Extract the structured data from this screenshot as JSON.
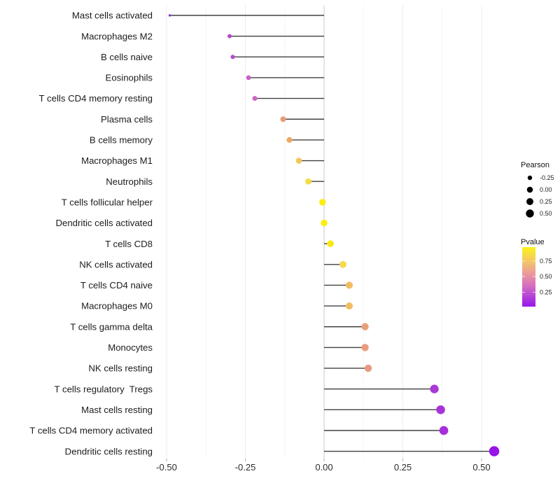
{
  "chart_data": {
    "type": "lollipop",
    "orientation": "horizontal",
    "title": "",
    "xlabel": "",
    "ylabel": "",
    "categories": [
      "Mast cells activated",
      "Macrophages M2",
      "B cells naive",
      "Eosinophils",
      "T cells CD4 memory resting",
      "Plasma cells",
      "B cells memory",
      "Macrophages M1",
      "Neutrophils",
      "T cells follicular helper",
      "Dendritic cells activated",
      "T cells CD8",
      "NK cells activated",
      "T cells CD4 naive",
      "Macrophages M0",
      "T cells gamma delta",
      "Monocytes",
      "NK cells resting",
      "T cells regulatory  Tregs",
      "Mast cells resting",
      "T cells CD4 memory activated",
      "Dendritic cells resting"
    ],
    "series": [
      {
        "name": "Pearson correlation",
        "values": [
          -0.49,
          -0.3,
          -0.29,
          -0.24,
          -0.22,
          -0.13,
          -0.11,
          -0.08,
          -0.05,
          -0.005,
          0.0,
          0.02,
          0.06,
          0.08,
          0.08,
          0.13,
          0.13,
          0.14,
          0.35,
          0.37,
          0.38,
          0.54
        ]
      }
    ],
    "point_colors": [
      "#8f28e3",
      "#b648cd",
      "#b648cd",
      "#ca5fc7",
      "#cc63c6",
      "#e99a76",
      "#ecaa66",
      "#f2c75d",
      "#f5dc47",
      "#fbee0e",
      "#fbee0e",
      "#fae90f",
      "#f6d94c",
      "#f1bd62",
      "#f1bd62",
      "#e8a079",
      "#e79d7e",
      "#e69b81",
      "#aa3ad4",
      "#a834d9",
      "#a52fdd",
      "#9714ea"
    ],
    "x_axis": {
      "tick_labels": [
        "-0.50",
        "-0.25",
        "0.00",
        "0.25",
        "0.50"
      ],
      "tick_values": [
        -0.5,
        -0.25,
        0.0,
        0.25,
        0.5
      ],
      "minor_tick_values": [
        -0.375,
        -0.125,
        0.125,
        0.375
      ],
      "range": [
        -0.55,
        0.6
      ],
      "grid": "on"
    },
    "legend_size": {
      "title": "Pearson",
      "entries": [
        {
          "label": "-0.25",
          "radius": 3.2
        },
        {
          "label": "0.00",
          "radius": 4.3
        },
        {
          "label": "0.25",
          "radius": 5.0
        },
        {
          "label": "0.50",
          "radius": 5.7
        }
      ],
      "swatch_color": "#000000",
      "position": "right"
    },
    "legend_color": {
      "title": "Pvalue",
      "tick_labels": [
        "0.75",
        "0.50",
        "0.25"
      ],
      "gradient": [
        {
          "offset": 0.0,
          "color": "#fbf318"
        },
        {
          "offset": 0.25,
          "color": "#f3c46c"
        },
        {
          "offset": 0.45,
          "color": "#e9999b"
        },
        {
          "offset": 0.65,
          "color": "#d76ec0"
        },
        {
          "offset": 0.82,
          "color": "#b445d8"
        },
        {
          "offset": 1.0,
          "color": "#9916ea"
        }
      ],
      "position": "right"
    },
    "styles": {
      "stem_color": "#404040",
      "zero_line_color": "#c9c9c9",
      "grid_major_color": "#ededed",
      "grid_minor_color": "#f6f6f6",
      "tick_mark_color": "#b0b0b0",
      "background": "#ffffff"
    }
  }
}
